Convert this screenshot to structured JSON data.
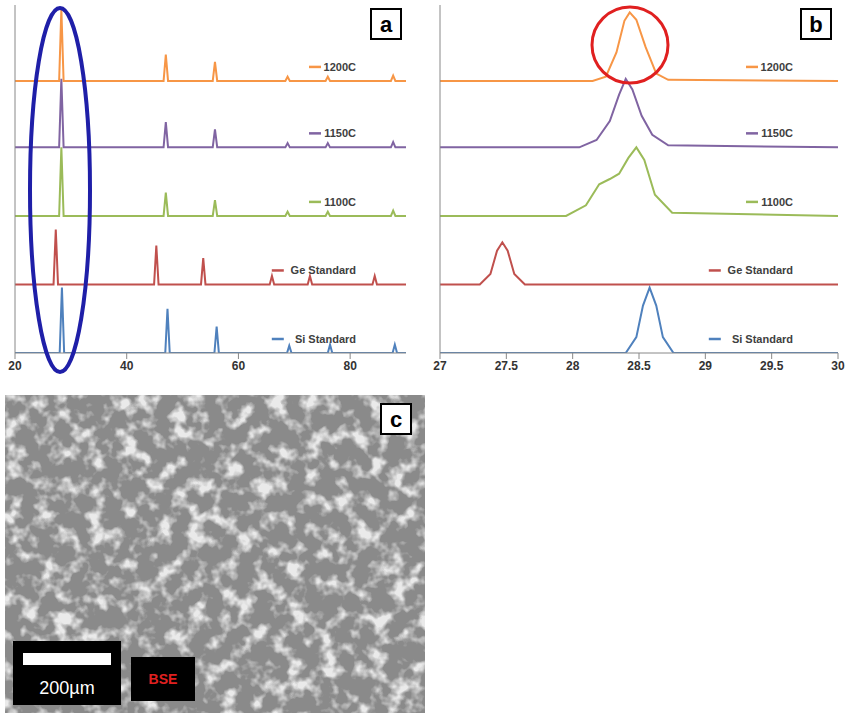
{
  "chart_data": [
    {
      "type": "line",
      "panel_label": "a",
      "xlim": [
        20,
        90
      ],
      "xticks": [
        20,
        40,
        60,
        80
      ],
      "ylim": [
        0,
        330
      ],
      "tick_labels": "x",
      "series": [
        {
          "name": "1200C",
          "color": "#F79646",
          "x": [
            20,
            27.9,
            28.3,
            28.7,
            46.6,
            47.0,
            47.4,
            55.4,
            55.8,
            56.2,
            68.4,
            68.8,
            69.2,
            75.6,
            76.0,
            76.4,
            87.3,
            87.7,
            88.1,
            90
          ],
          "values": [
            258,
            258,
            326,
            258,
            258,
            283,
            258,
            258,
            276,
            258,
            258,
            262,
            258,
            258,
            262,
            258,
            258,
            263,
            258,
            258
          ]
        },
        {
          "name": "1150C",
          "color": "#8064A2",
          "x": [
            20,
            27.9,
            28.3,
            28.7,
            46.6,
            47.0,
            47.4,
            55.4,
            55.8,
            56.2,
            68.4,
            68.8,
            69.2,
            75.6,
            76.0,
            76.4,
            87.3,
            87.7,
            88.1,
            90
          ],
          "values": [
            195,
            195,
            260,
            195,
            195,
            219,
            195,
            195,
            212,
            195,
            195,
            199,
            195,
            195,
            199,
            195,
            195,
            200,
            195,
            195
          ]
        },
        {
          "name": "1100C",
          "color": "#9BBB59",
          "x": [
            20,
            27.9,
            28.3,
            28.7,
            46.6,
            47.0,
            47.4,
            55.4,
            55.8,
            56.2,
            68.4,
            68.8,
            69.2,
            75.6,
            76.0,
            76.4,
            87.3,
            87.7,
            88.1,
            90
          ],
          "values": [
            130,
            130,
            195,
            130,
            130,
            152,
            130,
            130,
            145,
            130,
            130,
            134,
            130,
            130,
            134,
            130,
            130,
            135,
            130,
            130
          ]
        },
        {
          "name": "Ge Standard",
          "color": "#C0504D",
          "x": [
            20,
            26.9,
            27.3,
            27.7,
            44.9,
            45.3,
            45.7,
            53.3,
            53.7,
            54.1,
            65.6,
            66.0,
            66.4,
            72.4,
            72.8,
            73.2,
            84.0,
            84.4,
            84.8,
            90
          ],
          "values": [
            65,
            65,
            117,
            65,
            65,
            102,
            65,
            65,
            90,
            65,
            65,
            73,
            65,
            65,
            73,
            65,
            65,
            73,
            65,
            65
          ]
        },
        {
          "name": "Si Standard",
          "color": "#4F81BD",
          "x": [
            20,
            28.0,
            28.4,
            28.8,
            46.9,
            47.3,
            47.7,
            55.7,
            56.1,
            56.5,
            68.7,
            69.1,
            69.5,
            76.0,
            76.4,
            76.8,
            87.6,
            88.0,
            88.4,
            90
          ],
          "values": [
            0,
            0,
            62,
            0,
            0,
            42,
            0,
            0,
            25,
            0,
            0,
            7,
            0,
            0,
            8,
            0,
            0,
            8,
            0,
            0
          ]
        }
      ]
    },
    {
      "type": "line",
      "panel_label": "b",
      "xlim": [
        27,
        30
      ],
      "xticks": [
        27,
        27.5,
        28,
        28.5,
        29,
        29.5,
        30
      ],
      "ylim": [
        0,
        330
      ],
      "tick_labels": "x",
      "series": [
        {
          "name": "1200C",
          "color": "#F79646",
          "x": [
            27,
            28.15,
            28.25,
            28.33,
            28.39,
            28.43,
            28.48,
            28.55,
            28.63,
            28.72,
            30
          ],
          "values": [
            258,
            258,
            262,
            285,
            315,
            323,
            316,
            290,
            265,
            259,
            258
          ]
        },
        {
          "name": "1150C",
          "color": "#8064A2",
          "x": [
            27,
            28.05,
            28.18,
            28.28,
            28.35,
            28.4,
            28.45,
            28.52,
            28.6,
            28.72,
            30
          ],
          "values": [
            195,
            195,
            202,
            220,
            245,
            260,
            250,
            225,
            207,
            197,
            195
          ]
        },
        {
          "name": "1100C",
          "color": "#9BBB59",
          "x": [
            27,
            27.95,
            28.1,
            28.2,
            28.28,
            28.35,
            28.42,
            28.48,
            28.54,
            28.62,
            28.75,
            30
          ],
          "values": [
            130,
            130,
            140,
            160,
            165,
            170,
            185,
            195,
            183,
            150,
            133,
            130
          ]
        },
        {
          "name": "Ge Standard",
          "color": "#C0504D",
          "x": [
            27,
            27.3,
            27.38,
            27.43,
            27.47,
            27.51,
            27.56,
            27.64,
            30
          ],
          "values": [
            65,
            65,
            75,
            97,
            105,
            97,
            75,
            65,
            65
          ]
        },
        {
          "name": "Si Standard",
          "color": "#4F81BD",
          "x": [
            27,
            28.4,
            28.48,
            28.53,
            28.58,
            28.63,
            28.68,
            28.76,
            30
          ],
          "values": [
            0,
            0,
            15,
            45,
            62,
            45,
            15,
            0,
            0
          ]
        }
      ]
    }
  ],
  "image": {
    "panel_label": "c",
    "scale_bar": "200µm",
    "detector": "BSE"
  }
}
